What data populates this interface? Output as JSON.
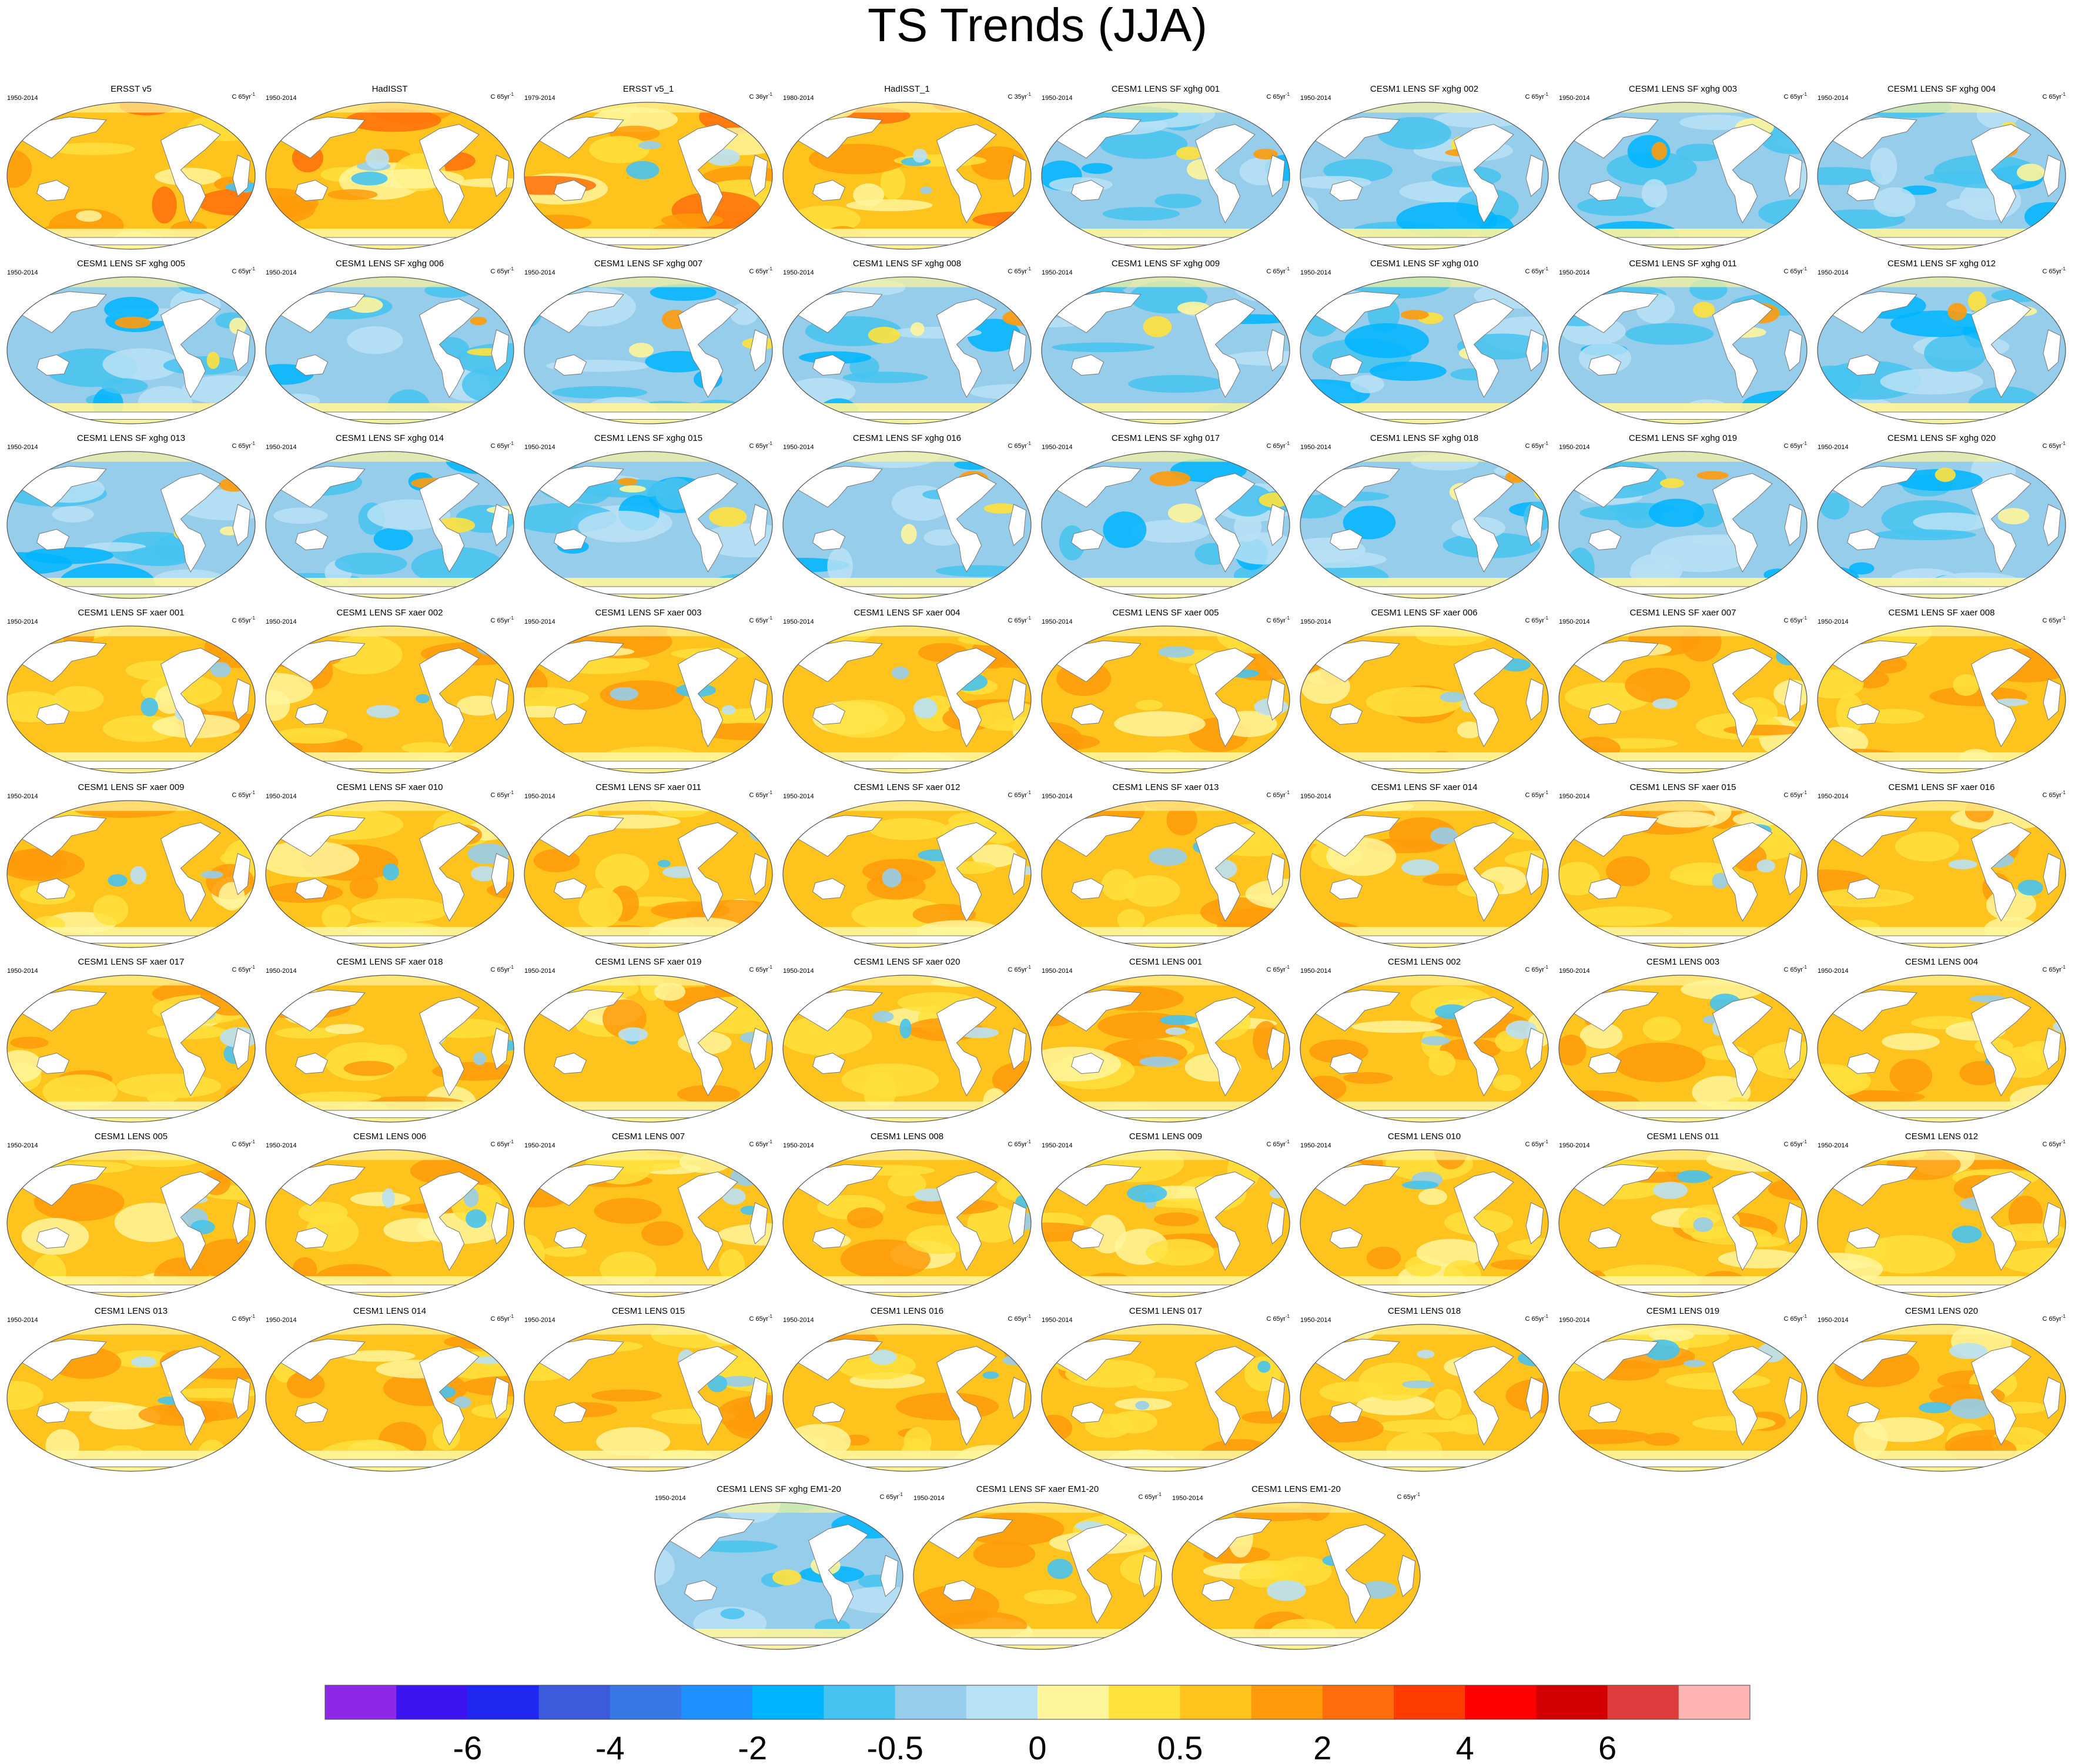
{
  "chart_data": {
    "type": "map-panel-grid",
    "title": "TS Trends (JJA)",
    "units_label": "C",
    "period_label_default": "1950-2014",
    "panels": [
      {
        "title": "ERSST v5",
        "period": "1950-2014",
        "unit": "C 65yr",
        "regime": "obs",
        "warm_level": 0.8
      },
      {
        "title": "HadISST",
        "period": "1950-2014",
        "unit": "C 65yr",
        "regime": "obs",
        "warm_level": 0.85
      },
      {
        "title": "ERSST v5_1",
        "period": "1979-2014",
        "unit": "C 36yr",
        "regime": "obs",
        "warm_level": 0.7
      },
      {
        "title": "HadISST_1",
        "period": "1980-2014",
        "unit": "C 35yr",
        "regime": "obs",
        "warm_level": 0.65
      },
      {
        "title": "CESM1 LENS SF xghg 001",
        "period": "1950-2014",
        "unit": "C 65yr",
        "regime": "xghg"
      },
      {
        "title": "CESM1 LENS SF xghg 002",
        "period": "1950-2014",
        "unit": "C 65yr",
        "regime": "xghg"
      },
      {
        "title": "CESM1 LENS SF xghg 003",
        "period": "1950-2014",
        "unit": "C 65yr",
        "regime": "xghg"
      },
      {
        "title": "CESM1 LENS SF xghg 004",
        "period": "1950-2014",
        "unit": "C 65yr",
        "regime": "xghg"
      },
      {
        "title": "CESM1 LENS SF xghg 005",
        "period": "1950-2014",
        "unit": "C 65yr",
        "regime": "xghg"
      },
      {
        "title": "CESM1 LENS SF xghg 006",
        "period": "1950-2014",
        "unit": "C 65yr",
        "regime": "xghg"
      },
      {
        "title": "CESM1 LENS SF xghg 007",
        "period": "1950-2014",
        "unit": "C 65yr",
        "regime": "xghg"
      },
      {
        "title": "CESM1 LENS SF xghg 008",
        "period": "1950-2014",
        "unit": "C 65yr",
        "regime": "xghg"
      },
      {
        "title": "CESM1 LENS SF xghg 009",
        "period": "1950-2014",
        "unit": "C 65yr",
        "regime": "xghg"
      },
      {
        "title": "CESM1 LENS SF xghg 010",
        "period": "1950-2014",
        "unit": "C 65yr",
        "regime": "xghg"
      },
      {
        "title": "CESM1 LENS SF xghg 011",
        "period": "1950-2014",
        "unit": "C 65yr",
        "regime": "xghg"
      },
      {
        "title": "CESM1 LENS SF xghg 012",
        "period": "1950-2014",
        "unit": "C 65yr",
        "regime": "xghg"
      },
      {
        "title": "CESM1 LENS SF xghg 013",
        "period": "1950-2014",
        "unit": "C 65yr",
        "regime": "xghg"
      },
      {
        "title": "CESM1 LENS SF xghg 014",
        "period": "1950-2014",
        "unit": "C 65yr",
        "regime": "xghg"
      },
      {
        "title": "CESM1 LENS SF xghg 015",
        "period": "1950-2014",
        "unit": "C 65yr",
        "regime": "xghg"
      },
      {
        "title": "CESM1 LENS SF xghg 016",
        "period": "1950-2014",
        "unit": "C 65yr",
        "regime": "xghg"
      },
      {
        "title": "CESM1 LENS SF xghg 017",
        "period": "1950-2014",
        "unit": "C 65yr",
        "regime": "xghg"
      },
      {
        "title": "CESM1 LENS SF xghg 018",
        "period": "1950-2014",
        "unit": "C 65yr",
        "regime": "xghg"
      },
      {
        "title": "CESM1 LENS SF xghg 019",
        "period": "1950-2014",
        "unit": "C 65yr",
        "regime": "xghg"
      },
      {
        "title": "CESM1 LENS SF xghg 020",
        "period": "1950-2014",
        "unit": "C 65yr",
        "regime": "xghg"
      },
      {
        "title": "CESM1 LENS SF xaer 001",
        "period": "1950-2014",
        "unit": "C 65yr",
        "regime": "warm"
      },
      {
        "title": "CESM1 LENS SF xaer 002",
        "period": "1950-2014",
        "unit": "C 65yr",
        "regime": "warm"
      },
      {
        "title": "CESM1 LENS SF xaer 003",
        "period": "1950-2014",
        "unit": "C 65yr",
        "regime": "warm"
      },
      {
        "title": "CESM1 LENS SF xaer 004",
        "period": "1950-2014",
        "unit": "C 65yr",
        "regime": "warm"
      },
      {
        "title": "CESM1 LENS SF xaer 005",
        "period": "1950-2014",
        "unit": "C 65yr",
        "regime": "warm"
      },
      {
        "title": "CESM1 LENS SF xaer 006",
        "period": "1950-2014",
        "unit": "C 65yr",
        "regime": "warm"
      },
      {
        "title": "CESM1 LENS SF xaer 007",
        "period": "1950-2014",
        "unit": "C 65yr",
        "regime": "warm"
      },
      {
        "title": "CESM1 LENS SF xaer 008",
        "period": "1950-2014",
        "unit": "C 65yr",
        "regime": "warm"
      },
      {
        "title": "CESM1 LENS SF xaer 009",
        "period": "1950-2014",
        "unit": "C 65yr",
        "regime": "warm"
      },
      {
        "title": "CESM1 LENS SF xaer 010",
        "period": "1950-2014",
        "unit": "C 65yr",
        "regime": "warm"
      },
      {
        "title": "CESM1 LENS SF xaer 011",
        "period": "1950-2014",
        "unit": "C 65yr",
        "regime": "warm"
      },
      {
        "title": "CESM1 LENS SF xaer 012",
        "period": "1950-2014",
        "unit": "C 65yr",
        "regime": "warm"
      },
      {
        "title": "CESM1 LENS SF xaer 013",
        "period": "1950-2014",
        "unit": "C 65yr",
        "regime": "warm"
      },
      {
        "title": "CESM1 LENS SF xaer 014",
        "period": "1950-2014",
        "unit": "C 65yr",
        "regime": "warm"
      },
      {
        "title": "CESM1 LENS SF xaer 015",
        "period": "1950-2014",
        "unit": "C 65yr",
        "regime": "warm"
      },
      {
        "title": "CESM1 LENS SF xaer 016",
        "period": "1950-2014",
        "unit": "C 65yr",
        "regime": "warm"
      },
      {
        "title": "CESM1 LENS SF xaer 017",
        "period": "1950-2014",
        "unit": "C 65yr",
        "regime": "warm"
      },
      {
        "title": "CESM1 LENS SF xaer 018",
        "period": "1950-2014",
        "unit": "C 65yr",
        "regime": "warm"
      },
      {
        "title": "CESM1 LENS SF xaer 019",
        "period": "1950-2014",
        "unit": "C 65yr",
        "regime": "warm"
      },
      {
        "title": "CESM1 LENS SF xaer 020",
        "period": "1950-2014",
        "unit": "C 65yr",
        "regime": "warm"
      },
      {
        "title": "CESM1 LENS 001",
        "period": "1950-2014",
        "unit": "C 65yr",
        "regime": "warm"
      },
      {
        "title": "CESM1 LENS 002",
        "period": "1950-2014",
        "unit": "C 65yr",
        "regime": "warm"
      },
      {
        "title": "CESM1 LENS 003",
        "period": "1950-2014",
        "unit": "C 65yr",
        "regime": "warm"
      },
      {
        "title": "CESM1 LENS 004",
        "period": "1950-2014",
        "unit": "C 65yr",
        "regime": "warm"
      },
      {
        "title": "CESM1 LENS 005",
        "period": "1950-2014",
        "unit": "C 65yr",
        "regime": "warm"
      },
      {
        "title": "CESM1 LENS 006",
        "period": "1950-2014",
        "unit": "C 65yr",
        "regime": "warm"
      },
      {
        "title": "CESM1 LENS 007",
        "period": "1950-2014",
        "unit": "C 65yr",
        "regime": "warm"
      },
      {
        "title": "CESM1 LENS 008",
        "period": "1950-2014",
        "unit": "C 65yr",
        "regime": "warm"
      },
      {
        "title": "CESM1 LENS 009",
        "period": "1950-2014",
        "unit": "C 65yr",
        "regime": "warm"
      },
      {
        "title": "CESM1 LENS 010",
        "period": "1950-2014",
        "unit": "C 65yr",
        "regime": "warm"
      },
      {
        "title": "CESM1 LENS 011",
        "period": "1950-2014",
        "unit": "C 65yr",
        "regime": "warm"
      },
      {
        "title": "CESM1 LENS 012",
        "period": "1950-2014",
        "unit": "C 65yr",
        "regime": "warm"
      },
      {
        "title": "CESM1 LENS 013",
        "period": "1950-2014",
        "unit": "C 65yr",
        "regime": "warm"
      },
      {
        "title": "CESM1 LENS 014",
        "period": "1950-2014",
        "unit": "C 65yr",
        "regime": "warm"
      },
      {
        "title": "CESM1 LENS 015",
        "period": "1950-2014",
        "unit": "C 65yr",
        "regime": "warm"
      },
      {
        "title": "CESM1 LENS 016",
        "period": "1950-2014",
        "unit": "C 65yr",
        "regime": "warm"
      },
      {
        "title": "CESM1 LENS 017",
        "period": "1950-2014",
        "unit": "C 65yr",
        "regime": "warm"
      },
      {
        "title": "CESM1 LENS 018",
        "period": "1950-2014",
        "unit": "C 65yr",
        "regime": "warm"
      },
      {
        "title": "CESM1 LENS 019",
        "period": "1950-2014",
        "unit": "C 65yr",
        "regime": "warm"
      },
      {
        "title": "CESM1 LENS 020",
        "period": "1950-2014",
        "unit": "C 65yr",
        "regime": "warm"
      },
      {
        "title": "CESM1 LENS SF xghg EM1-20",
        "period": "1950-2014",
        "unit": "C 65yr",
        "regime": "xghg-mean"
      },
      {
        "title": "CESM1 LENS SF xaer EM1-20",
        "period": "1950-2014",
        "unit": "C 65yr",
        "regime": "warm"
      },
      {
        "title": "CESM1 LENS EM1-20",
        "period": "1950-2014",
        "unit": "C 65yr",
        "regime": "warm"
      }
    ],
    "colorbar": {
      "colors": [
        "#8c28e6",
        "#3c14f0",
        "#1e28f0",
        "#3c5adc",
        "#3778e6",
        "#1e90ff",
        "#00b4ff",
        "#46c3f0",
        "#96cdeb",
        "#b9e1f5",
        "#fff59b",
        "#ffe13c",
        "#ffc31e",
        "#ff9b0a",
        "#ff6e0a",
        "#ff3c00",
        "#ff0000",
        "#d20000",
        "#dc3c3c",
        "#ffb4b4"
      ],
      "tick_labels": [
        "-6",
        "-4",
        "-2",
        "-0.5",
        "0",
        "0.5",
        "2",
        "4",
        "6"
      ],
      "tick_boundaries": [
        2,
        4,
        6,
        8,
        10,
        12,
        14,
        16,
        18
      ]
    }
  }
}
